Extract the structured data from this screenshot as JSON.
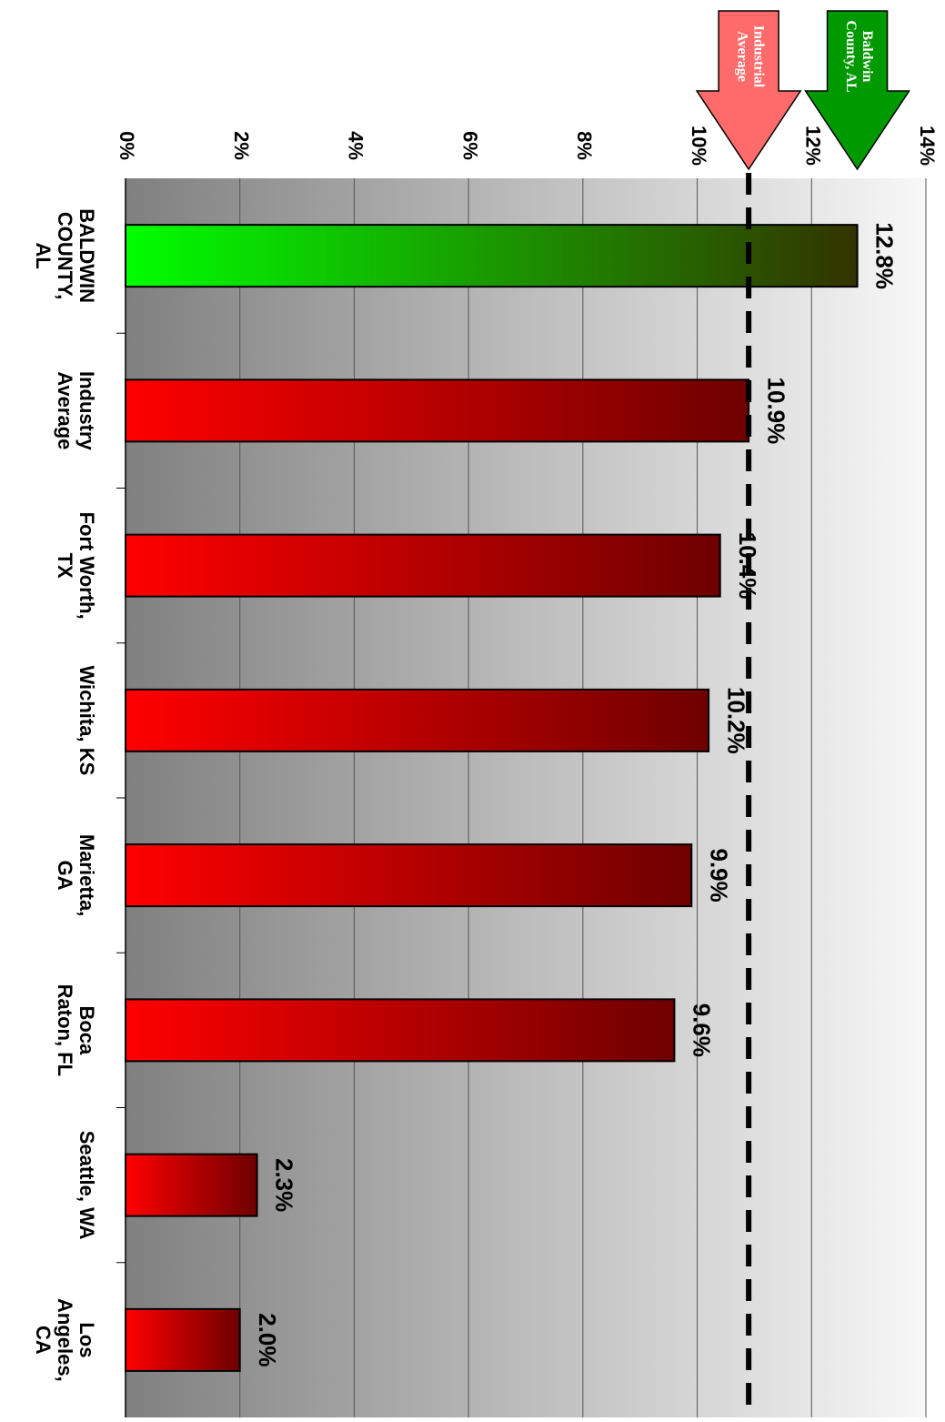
{
  "chart_data": {
    "type": "bar",
    "orientation": "horizontal-rotated",
    "categories": [
      [
        "BALDWIN",
        "COUNTY,",
        "AL"
      ],
      [
        "Industry",
        "Average"
      ],
      [
        "Fort Worth,",
        "TX"
      ],
      [
        "Wichita, KS"
      ],
      [
        "Marietta,",
        "GA"
      ],
      [
        "Boca",
        "Raton, FL"
      ],
      [
        "Seattle, WA"
      ],
      [
        "Los",
        "Angeles,",
        "CA"
      ]
    ],
    "values": [
      12.8,
      10.9,
      10.4,
      10.2,
      9.9,
      9.6,
      2.3,
      2.0
    ],
    "data_labels": [
      "12.8%",
      "10.9%",
      "10.4%",
      "10.2%",
      "9.9%",
      "9.6%",
      "2.3%",
      "2.0%"
    ],
    "value_axis": {
      "min": 0,
      "max": 14,
      "ticks": [
        0,
        2,
        4,
        6,
        8,
        10,
        12,
        14
      ],
      "tick_labels": [
        "0%",
        "2%",
        "4%",
        "6%",
        "8%",
        "10%",
        "12%",
        "14%"
      ]
    },
    "reference_line": {
      "value": 10.9,
      "style": "dashed"
    },
    "annotations": [
      {
        "text": [
          "Industrial",
          "Average"
        ],
        "value": 10.9,
        "color": "#ff6b6b"
      },
      {
        "text": [
          "Baldwin",
          "County, AL"
        ],
        "value": 12.8,
        "color": "#009900"
      }
    ],
    "colors": {
      "highlight_bar_start": "#00ff00",
      "highlight_bar_end": "#333300",
      "bar_start": "#ff0000",
      "bar_end": "#6e0000",
      "background_dark": "#808080",
      "background_light": "#f8f8f8"
    },
    "grid": true,
    "legend": "none"
  }
}
